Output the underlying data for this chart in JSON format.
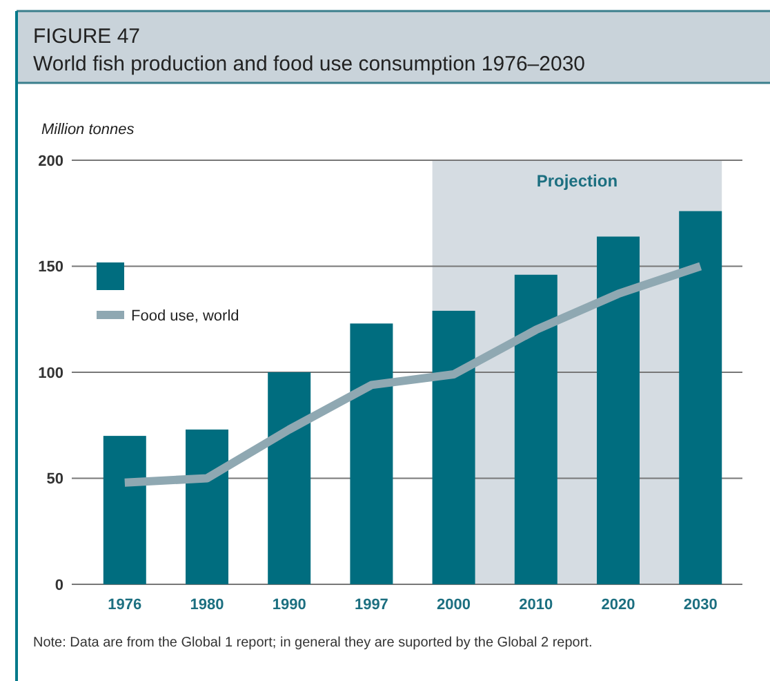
{
  "chart_data": {
    "type": "bar",
    "title": "FIGURE 47",
    "subtitle": "World fish production and food use consumption 1976–2030",
    "ylabel": "Million tonnes",
    "categories": [
      "1976",
      "1980",
      "1990",
      "1997",
      "2000",
      "2010",
      "2020",
      "2030"
    ],
    "series": [
      {
        "color": "#006d7f",
        "values": [
          70,
          73,
          100,
          123,
          129,
          146,
          164,
          176
        ]
      },
      {
        "type": "line",
        "name": "Food use, world",
        "color": "#8fa8b2",
        "values": [
          48,
          50,
          73,
          94,
          99,
          120,
          137,
          150
        ]
      }
    ],
    "ylim": [
      0,
      200
    ],
    "yticks": [
      0,
      50,
      100,
      150,
      200
    ],
    "grid": "y",
    "legend": "left",
    "marker": "none",
    "line_style": "solid",
    "bands": [
      {
        "axis": "x",
        "from": "2000",
        "to": "2030",
        "label": "Projection",
        "color": "#d5dce2"
      }
    ],
    "annotations": [
      "Note: Data are from the Global 1 report; in general they are suported by the Global 2 report."
    ]
  }
}
